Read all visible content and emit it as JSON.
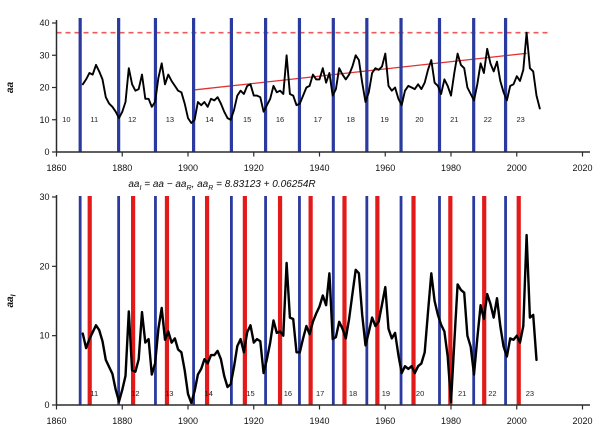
{
  "figure": {
    "background": "#ffffff",
    "formula": {
      "segments": [
        {
          "text": "aa",
          "sub": "I"
        },
        {
          "text": " = aa − aa",
          "sub": "R"
        },
        {
          "text": ", aa",
          "sub": "R"
        },
        {
          "text": " = 8.83123 + 0.06254R",
          "sub": ""
        }
      ]
    }
  },
  "colors": {
    "background": "#ffffff",
    "axis": "#2b2b2b",
    "text": "#111111",
    "series": "#000000",
    "cycle_minimum_line": "#2a3a9e",
    "cycle_maximum_line": "#e31a1a",
    "trend_line": "#e03131",
    "dashed_max_line": "#f05a5a"
  },
  "chart_data": [
    {
      "type": "line",
      "panel": "top",
      "title": "",
      "xlabel": "",
      "ylabel": {
        "text": "aa",
        "sub": ""
      },
      "xlim": [
        1860,
        2020
      ],
      "ylim": [
        0,
        40
      ],
      "grid": false,
      "xticks": [
        1860,
        1880,
        1900,
        1920,
        1940,
        1960,
        1980,
        2000,
        2020
      ],
      "yticks": [
        0,
        10,
        20,
        30,
        40
      ],
      "hline": {
        "value": 37,
        "style": "dashed",
        "x_end": 2010,
        "color_key": "dashed_max_line"
      },
      "trend": {
        "x1": 1901.5,
        "y1": 19.2,
        "x2": 2003,
        "y2": 30.6,
        "color_key": "trend_line"
      },
      "event_lines": [
        {
          "name": "solar-cycle-minimum-line",
          "color_key": "cycle_minimum_line",
          "width": 3.2,
          "years": [
            1867.2,
            1878.9,
            1890.1,
            1901.7,
            1913.2,
            1923.6,
            1933.9,
            1944.2,
            1954.4,
            1964.8,
            1976.5,
            1986.9,
            1996.6
          ]
        }
      ],
      "cycle_labels": {
        "y_value": 10.2,
        "items": [
          {
            "label": "10",
            "x": 1863.0
          },
          {
            "label": "11",
            "x": 1871.5
          },
          {
            "label": "12",
            "x": 1883.0
          },
          {
            "label": "13",
            "x": 1894.5
          },
          {
            "label": "14",
            "x": 1906.5
          },
          {
            "label": "15",
            "x": 1918.0
          },
          {
            "label": "16",
            "x": 1928.0
          },
          {
            "label": "17",
            "x": 1939.5
          },
          {
            "label": "18",
            "x": 1949.5
          },
          {
            "label": "19",
            "x": 1959.8
          },
          {
            "label": "20",
            "x": 1970.4
          },
          {
            "label": "21",
            "x": 1981.0
          },
          {
            "label": "22",
            "x": 1991.2
          },
          {
            "label": "23",
            "x": 2001.2
          }
        ]
      },
      "series": [
        {
          "name": "aa",
          "x_start": 1868,
          "x_step": 1,
          "y": [
            21,
            22.5,
            24.5,
            24,
            27,
            25,
            22.5,
            17,
            15,
            14,
            12.5,
            10.5,
            12.5,
            15.5,
            26,
            21,
            19,
            19.5,
            24,
            16.5,
            16.5,
            14,
            15.5,
            23,
            27.5,
            21,
            24,
            22,
            20.5,
            19,
            18.5,
            15,
            10.5,
            9,
            10,
            15.5,
            14.5,
            15.5,
            14,
            16.5,
            16,
            17,
            15,
            12.5,
            10.5,
            10,
            13,
            17.5,
            19,
            18,
            20.5,
            21,
            17.5,
            17.5,
            17,
            12.5,
            14.5,
            16.5,
            20.5,
            18.5,
            19,
            18,
            30,
            18,
            17.5,
            14.5,
            15,
            17.5,
            20,
            20.5,
            24,
            22.5,
            22.5,
            26,
            21.5,
            24.5,
            17.5,
            19.5,
            26,
            24,
            22.5,
            24,
            26.5,
            30,
            28.5,
            21.5,
            15.5,
            18.5,
            24.5,
            26,
            25.5,
            26.5,
            30.5,
            20.5,
            19,
            20,
            16.5,
            14.5,
            19,
            20.5,
            20,
            19.5,
            21,
            19.5,
            21.5,
            25.5,
            28.5,
            21.5,
            20.5,
            18,
            22.5,
            20.5,
            17.5,
            24.5,
            30.5,
            27,
            26,
            20,
            18,
            16,
            21,
            27.5,
            24.5,
            32,
            27.5,
            25,
            28,
            22,
            18.5,
            16,
            20.5,
            21,
            23.5,
            22,
            25.5,
            37,
            26,
            25,
            17.5,
            13.5
          ]
        }
      ]
    },
    {
      "type": "line",
      "panel": "bottom",
      "title": "",
      "xlabel": "",
      "ylabel": {
        "text": "aa",
        "sub": "I"
      },
      "xlim": [
        1860,
        2020
      ],
      "ylim": [
        0,
        30
      ],
      "grid": false,
      "xticks": [
        1860,
        1880,
        1900,
        1920,
        1940,
        1960,
        1980,
        2000,
        2020
      ],
      "yticks": [
        0,
        10,
        20,
        30
      ],
      "event_lines": [
        {
          "name": "solar-cycle-minimum-line",
          "color_key": "cycle_minimum_line",
          "width": 2.8,
          "years": [
            1867.2,
            1878.9,
            1890.1,
            1901.7,
            1913.2,
            1923.6,
            1933.9,
            1944.2,
            1954.4,
            1964.8,
            1976.5,
            1986.9,
            1996.6
          ]
        },
        {
          "name": "solar-cycle-maximum-line",
          "color_key": "cycle_maximum_line",
          "width": 4.2,
          "years": [
            1870.1,
            1883.3,
            1893.6,
            1905.8,
            1917.3,
            1928.0,
            1937.3,
            1947.6,
            1957.6,
            1968.6,
            1979.8,
            1990.1,
            2000.6
          ]
        }
      ],
      "cycle_labels": {
        "y_value": 1.7,
        "items": [
          {
            "label": "11",
            "x": 1871.5
          },
          {
            "label": "12",
            "x": 1884.0
          },
          {
            "label": "13",
            "x": 1894.3
          },
          {
            "label": "14",
            "x": 1906.3
          },
          {
            "label": "15",
            "x": 1919.0
          },
          {
            "label": "16",
            "x": 1930.4
          },
          {
            "label": "17",
            "x": 1940.2
          },
          {
            "label": "18",
            "x": 1950.2
          },
          {
            "label": "19",
            "x": 1960.2
          },
          {
            "label": "20",
            "x": 1970.6
          },
          {
            "label": "21",
            "x": 1983.4
          },
          {
            "label": "22",
            "x": 1992.6
          },
          {
            "label": "23",
            "x": 2004.0
          }
        ]
      },
      "series": [
        {
          "name": "aaI",
          "x_start": 1868,
          "x_step": 1,
          "y": [
            10.3,
            8.2,
            9.5,
            10.5,
            11.5,
            10.8,
            9.2,
            6.5,
            5.5,
            4.5,
            2.2,
            0.5,
            2.2,
            4.2,
            13.5,
            5.0,
            4.8,
            6.6,
            13.4,
            9.0,
            9.5,
            4.4,
            6.0,
            11.0,
            14.0,
            9.4,
            10.6,
            9.0,
            9.6,
            8.0,
            7.6,
            5.0,
            1.6,
            0.3,
            2.0,
            4.4,
            5.2,
            6.6,
            6.0,
            7.2,
            7.2,
            7.8,
            6.6,
            4.2,
            2.6,
            3.0,
            5.5,
            8.5,
            9.5,
            7.6,
            10.5,
            11.5,
            9.0,
            9.5,
            9.2,
            4.6,
            6.6,
            9.0,
            12.2,
            10.4,
            10.6,
            10.0,
            20.5,
            12.6,
            12.4,
            7.6,
            7.6,
            9.6,
            11.4,
            10.2,
            12.0,
            13.2,
            14.2,
            15.8,
            14.4,
            19.0,
            9.5,
            9.8,
            12.0,
            11.0,
            9.6,
            12.4,
            16.0,
            19.5,
            19.0,
            13.0,
            8.6,
            10.5,
            12.6,
            11.4,
            12.0,
            14.5,
            17.0,
            11.0,
            9.6,
            10.4,
            7.2,
            4.6,
            5.6,
            5.2,
            5.6,
            4.6,
            5.6,
            6.0,
            7.6,
            13.4,
            19.0,
            15.0,
            13.0,
            11.6,
            10.6,
            7.0,
            0.4,
            9.0,
            17.4,
            16.6,
            16.2,
            10.0,
            8.4,
            4.4,
            9.6,
            14.4,
            12.4,
            16.0,
            14.6,
            12.6,
            15.4,
            11.4,
            8.4,
            7.0,
            9.6,
            9.4,
            10.0,
            9.0,
            11.4,
            24.5,
            12.6,
            13.0,
            6.5
          ]
        }
      ]
    }
  ]
}
